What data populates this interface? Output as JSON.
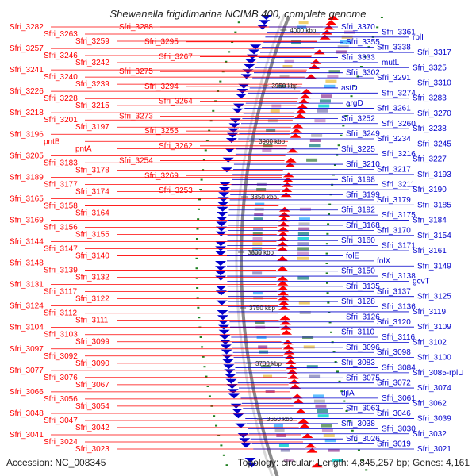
{
  "title": "Shewanella frigidimarina NCIMB 400, complete genome",
  "footer": {
    "accession": "Accession: NC_008345",
    "topology": "Topology: circular; Length: 4,845,257 bp; Genes: 4,161"
  },
  "colors": {
    "plus_strand": "#ff0000",
    "minus_strand": "#0000cc",
    "ring": "#8a8a8a"
  },
  "kbp_markers": [
    "4000 kbp",
    "3950 kbp",
    "3900 kbp",
    "3850 kbp",
    "3800 kbp",
    "3750 kbp",
    "3700 kbp",
    "3650 kbp"
  ],
  "left_genes": [
    "Sfri_3282",
    "Sfri_3263",
    "Sfri_3259",
    "Sfri_3257",
    "Sfri_3246",
    "Sfri_3242",
    "Sfri_3241",
    "Sfri_3240",
    "Sfri_3239",
    "Sfri_3226",
    "Sfri_3228",
    "Sfri_3215",
    "Sfri_3218",
    "Sfri_3201",
    "Sfri_3197",
    "Sfri_3196",
    "pntB",
    "pntA",
    "Sfri_3205",
    "Sfri_3183",
    "Sfri_3178",
    "Sfri_3189",
    "Sfri_3177",
    "Sfri_3174",
    "Sfri_3165",
    "Sfri_3158",
    "Sfri_3164",
    "Sfri_3169",
    "Sfri_3156",
    "Sfri_3155",
    "Sfri_3144",
    "Sfri_3147",
    "Sfri_3140",
    "Sfri_3148",
    "Sfri_3139",
    "Sfri_3132",
    "Sfri_3131",
    "Sfri_3117",
    "Sfri_3122",
    "Sfri_3124",
    "Sfri_3112",
    "Sfri_3111",
    "Sfri_3104",
    "Sfri_3103",
    "Sfri_3099",
    "Sfri_3097",
    "Sfri_3092",
    "Sfri_3090",
    "Sfri_3077",
    "Sfri_3076",
    "Sfri_3067",
    "Sfri_3066",
    "Sfri_3056",
    "Sfri_3054",
    "Sfri_3048",
    "Sfri_3047",
    "Sfri_3042",
    "Sfri_3041",
    "Sfri_3024",
    "Sfri_3023",
    "Sfri_3288",
    "Sfri_3295",
    "Sfri_3267",
    "Sfri_3275",
    "Sfri_3294",
    "Sfri_3264",
    "Sfri_3273",
    "Sfri_3255",
    "Sfri_3262",
    "Sfri_3254",
    "Sfri_3269",
    "Sfri_3253"
  ],
  "right_genes": [
    "Sfri_3370",
    "Sfri_3361",
    "rplI",
    "Sfri_3355",
    "Sfri_3338",
    "Sfri_3317",
    "Sfri_3333",
    "mutL",
    "Sfri_3325",
    "Sfri_3302",
    "Sfri_3291",
    "Sfri_3310",
    "astD",
    "Sfri_3274",
    "Sfri_3283",
    "argD",
    "Sfri_3261",
    "Sfri_3270",
    "Sfri_3252",
    "Sfri_3260",
    "Sfri_3238",
    "Sfri_3249",
    "Sfri_3234",
    "Sfri_3245",
    "Sfri_3225",
    "Sfri_3216",
    "Sfri_3227",
    "Sfri_3210",
    "Sfri_3217",
    "Sfri_3193",
    "Sfri_3198",
    "Sfri_3211",
    "Sfri_3190",
    "Sfri_3199",
    "Sfri_3179",
    "Sfri_3185",
    "Sfri_3192",
    "Sfri_3175",
    "Sfri_3184",
    "Sfri_3168",
    "Sfri_3170",
    "Sfri_3154",
    "Sfri_3160",
    "Sfri_3171",
    "Sfri_3161",
    "folE",
    "folX",
    "Sfri_3149",
    "Sfri_3150",
    "Sfri_3138",
    "gcvT",
    "Sfri_3135",
    "Sfri_3137",
    "Sfri_3125",
    "Sfri_3128",
    "Sfri_3136",
    "Sfri_3119",
    "Sfri_3126",
    "Sfri_3120",
    "Sfri_3109",
    "Sfri_3110",
    "Sfri_3116",
    "Sfri_3102",
    "Sfri_3096",
    "Sfri_3098",
    "Sfri_3100",
    "Sfri_3083",
    "Sfri_3084",
    "Sfri_3085-rplU",
    "Sfri_3075",
    "Sfri_3072",
    "Sfri_3074",
    "djlA",
    "Sfri_3061",
    "Sfri_3062",
    "Sfri_3063",
    "Sfri_3046",
    "Sfri_3039",
    "Sfri_3038",
    "Sfri_3030",
    "Sfri_3032",
    "Sfri_3026",
    "Sfri_3019",
    "Sfri_3021"
  ]
}
